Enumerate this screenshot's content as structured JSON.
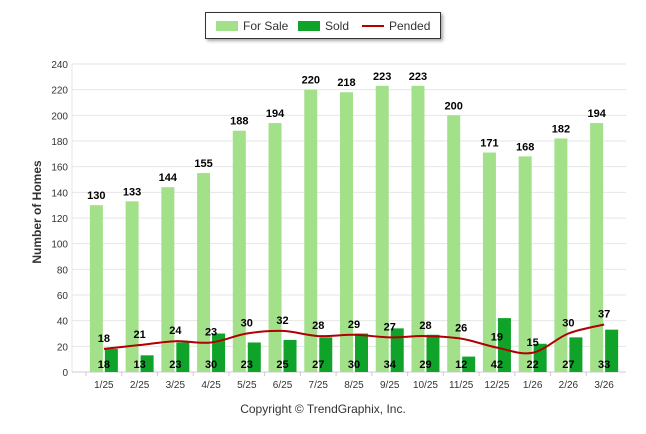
{
  "chart_data": {
    "type": "bar",
    "categories": [
      "1/25",
      "2/25",
      "3/25",
      "4/25",
      "5/25",
      "6/25",
      "7/25",
      "8/25",
      "9/25",
      "10/25",
      "11/25",
      "12/25",
      "1/26",
      "2/26",
      "3/26"
    ],
    "series": [
      {
        "name": "For Sale",
        "kind": "bar",
        "color": "#a3e08a",
        "values": [
          130,
          133,
          144,
          155,
          188,
          194,
          220,
          218,
          223,
          223,
          200,
          171,
          168,
          182,
          194
        ]
      },
      {
        "name": "Sold",
        "kind": "bar",
        "color": "#10a32a",
        "values": [
          18,
          13,
          23,
          30,
          23,
          25,
          27,
          30,
          34,
          29,
          12,
          42,
          22,
          27,
          33
        ]
      },
      {
        "name": "Pended",
        "kind": "line",
        "color": "#b00000",
        "values": [
          18,
          21,
          24,
          23,
          30,
          32,
          28,
          29,
          27,
          28,
          26,
          19,
          15,
          30,
          37
        ]
      }
    ],
    "ylabel": "Number of Homes",
    "ylim": [
      0,
      240
    ],
    "yticks": [
      0,
      20,
      40,
      60,
      80,
      100,
      120,
      140,
      160,
      180,
      200,
      220,
      240
    ],
    "grid": true,
    "legend_position": "top-center"
  },
  "footer": {
    "copyright": "Copyright © TrendGraphix, Inc."
  }
}
